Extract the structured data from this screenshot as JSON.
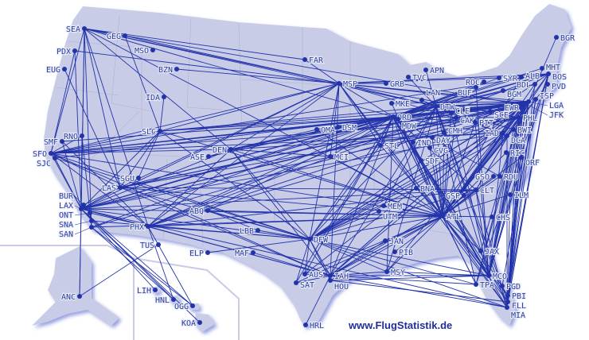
{
  "credit": "www.FlugStatistik.de",
  "colors": {
    "land": "#c8cce6",
    "route": "#2233aa",
    "airport": "#2233aa",
    "border": "#a9aec8"
  },
  "airports": [
    "SEA",
    "GEG",
    "PDX",
    "EUG",
    "MSO",
    "BZN",
    "IDA",
    "SLC",
    "RNO",
    "SMF",
    "SFO",
    "SJC",
    "DEN",
    "ASE",
    "LAS",
    "SGU",
    "LAX",
    "BUR",
    "ONT",
    "SNA",
    "SAN",
    "PHX",
    "TUS",
    "ABQ",
    "ELP",
    "LBB",
    "MAF",
    "ANC",
    "LIH",
    "HNL",
    "OGG",
    "KOA",
    "FAR",
    "MSP",
    "GRB",
    "TVC",
    "APN",
    "MKE",
    "LAN",
    "DTW",
    "ORD",
    "MDW",
    "CLE",
    "CAK",
    "PIT",
    "OMA",
    "DSM",
    "MCI",
    "STL",
    "IND",
    "DAY",
    "CMH",
    "CVG",
    "SDF",
    "BGR",
    "MHT",
    "BOS",
    "ALB",
    "SYR",
    "ROC",
    "BUF",
    "BGM",
    "BDL",
    "PVD",
    "LGA",
    "JFK",
    "EWR",
    "ISP",
    "PHL",
    "SCE",
    "IAD",
    "DCA",
    "BWI",
    "RIC",
    "ORF",
    "GSO",
    "RDU",
    "CLT",
    "GSP",
    "ILM",
    "BNA",
    "MEM",
    "UTM",
    "ATL",
    "CHS",
    "DFW",
    "JAN",
    "PIB",
    "MSY",
    "AUS",
    "IAH",
    "HOU",
    "SAT",
    "HRL",
    "JAX",
    "MCO",
    "TPA",
    "PGD",
    "PBI",
    "FLL",
    "MIA"
  ],
  "routes": [
    [
      "SEA",
      "ORD"
    ],
    [
      "SEA",
      "MSP"
    ],
    [
      "SEA",
      "DTW"
    ],
    [
      "SEA",
      "EWR"
    ],
    [
      "SEA",
      "LAX"
    ],
    [
      "SEA",
      "SFO"
    ],
    [
      "SEA",
      "LAS"
    ],
    [
      "SEA",
      "PHX"
    ],
    [
      "SEA",
      "ANC"
    ],
    [
      "SEA",
      "DEN"
    ],
    [
      "SEA",
      "SAN"
    ],
    [
      "SEA",
      "GEG"
    ],
    [
      "SEA",
      "ATL"
    ],
    [
      "GEG",
      "MSP"
    ],
    [
      "GEG",
      "SLC"
    ],
    [
      "PDX",
      "MSP"
    ],
    [
      "PDX",
      "LAX"
    ],
    [
      "PDX",
      "SFO"
    ],
    [
      "EUG",
      "LAS"
    ],
    [
      "BZN",
      "MSP"
    ],
    [
      "IDA",
      "SLC"
    ],
    [
      "FAR",
      "MSP"
    ],
    [
      "FAR",
      "SEA"
    ],
    [
      "SLC",
      "ORD"
    ],
    [
      "SLC",
      "ATL"
    ],
    [
      "SLC",
      "MSP"
    ],
    [
      "SLC",
      "DFW"
    ],
    [
      "SLC",
      "LAX"
    ],
    [
      "SLC",
      "DTW"
    ],
    [
      "SLC",
      "JFK"
    ],
    [
      "SLC",
      "LAS"
    ],
    [
      "SLC",
      "SFO"
    ],
    [
      "RNO",
      "SFO"
    ],
    [
      "RNO",
      "LAX"
    ],
    [
      "RNO",
      "SAN"
    ],
    [
      "SMF",
      "LAX"
    ],
    [
      "SMF",
      "ORD"
    ],
    [
      "SMF",
      "PHX"
    ],
    [
      "SFO",
      "ORD"
    ],
    [
      "SFO",
      "JFK"
    ],
    [
      "SFO",
      "EWR"
    ],
    [
      "SFO",
      "IAD"
    ],
    [
      "SFO",
      "BOS"
    ],
    [
      "SFO",
      "ATL"
    ],
    [
      "SFO",
      "DFW"
    ],
    [
      "SFO",
      "IAH"
    ],
    [
      "SFO",
      "DEN"
    ],
    [
      "SFO",
      "LAX"
    ],
    [
      "SFO",
      "LAS"
    ],
    [
      "SFO",
      "PHX"
    ],
    [
      "SFO",
      "MSP"
    ],
    [
      "SFO",
      "PHL"
    ],
    [
      "SJC",
      "LAX"
    ],
    [
      "SJC",
      "ORD"
    ],
    [
      "SJC",
      "DFW"
    ],
    [
      "DEN",
      "ORD"
    ],
    [
      "DEN",
      "ATL"
    ],
    [
      "DEN",
      "JFK"
    ],
    [
      "DEN",
      "IAD"
    ],
    [
      "DEN",
      "DFW"
    ],
    [
      "DEN",
      "LAX"
    ],
    [
      "DEN",
      "PHX"
    ],
    [
      "DEN",
      "MSP"
    ],
    [
      "DEN",
      "DTW"
    ],
    [
      "DEN",
      "IAH"
    ],
    [
      "DEN",
      "LGA"
    ],
    [
      "ASE",
      "DEN"
    ],
    [
      "ASE",
      "ORD"
    ],
    [
      "LAS",
      "ORD"
    ],
    [
      "LAS",
      "ATL"
    ],
    [
      "LAS",
      "JFK"
    ],
    [
      "LAS",
      "DFW"
    ],
    [
      "LAS",
      "MSP"
    ],
    [
      "LAS",
      "DTW"
    ],
    [
      "LAS",
      "EWR"
    ],
    [
      "LAS",
      "PHL"
    ],
    [
      "LAS",
      "IAH"
    ],
    [
      "LAS",
      "LAX"
    ],
    [
      "LAS",
      "CLT"
    ],
    [
      "SGU",
      "SLC"
    ],
    [
      "LAX",
      "JFK"
    ],
    [
      "LAX",
      "ORD"
    ],
    [
      "LAX",
      "ATL"
    ],
    [
      "LAX",
      "DFW"
    ],
    [
      "LAX",
      "IAD"
    ],
    [
      "LAX",
      "BOS"
    ],
    [
      "LAX",
      "MIA"
    ],
    [
      "LAX",
      "IAH"
    ],
    [
      "LAX",
      "DTW"
    ],
    [
      "LAX",
      "MSP"
    ],
    [
      "LAX",
      "EWR"
    ],
    [
      "LAX",
      "PHL"
    ],
    [
      "LAX",
      "CLT"
    ],
    [
      "LAX",
      "HNL"
    ],
    [
      "LAX",
      "OGG"
    ],
    [
      "LAX",
      "KOA"
    ],
    [
      "LAX",
      "LIH"
    ],
    [
      "LAX",
      "PHX"
    ],
    [
      "LAX",
      "ANC"
    ],
    [
      "SAN",
      "HNL"
    ],
    [
      "SAN",
      "OGG"
    ],
    [
      "SAN",
      "ORD"
    ],
    [
      "SAN",
      "ATL"
    ],
    [
      "SAN",
      "JFK"
    ],
    [
      "SNA",
      "DFW"
    ],
    [
      "ONT",
      "PHX"
    ],
    [
      "BUR",
      "LAS"
    ],
    [
      "PHX",
      "ORD"
    ],
    [
      "PHX",
      "ATL"
    ],
    [
      "PHX",
      "DFW"
    ],
    [
      "PHX",
      "JFK"
    ],
    [
      "PHX",
      "IAH"
    ],
    [
      "PHX",
      "PHL"
    ],
    [
      "PHX",
      "CLT"
    ],
    [
      "PHX",
      "HNL"
    ],
    [
      "PHX",
      "OGG"
    ],
    [
      "PHX",
      "MSP"
    ],
    [
      "PHX",
      "DTW"
    ],
    [
      "PHX",
      "BOS"
    ],
    [
      "TUS",
      "ANC"
    ],
    [
      "ABQ",
      "DFW"
    ],
    [
      "ABQ",
      "ORD"
    ],
    [
      "ABQ",
      "ATL"
    ],
    [
      "ELP",
      "DFW"
    ],
    [
      "LBB",
      "DFW"
    ],
    [
      "MAF",
      "IAH"
    ],
    [
      "LBB",
      "ABQ"
    ],
    [
      "MSP",
      "ORD"
    ],
    [
      "MSP",
      "ATL"
    ],
    [
      "MSP",
      "JFK"
    ],
    [
      "MSP",
      "LGA"
    ],
    [
      "MSP",
      "BOS"
    ],
    [
      "MSP",
      "DTW"
    ],
    [
      "MSP",
      "DFW"
    ],
    [
      "MSP",
      "MCO"
    ],
    [
      "MSP",
      "PHL"
    ],
    [
      "MSP",
      "IAD"
    ],
    [
      "MSP",
      "MIA"
    ],
    [
      "MSP",
      "MCI"
    ],
    [
      "MSP",
      "STL"
    ],
    [
      "MSP",
      "GRB"
    ],
    [
      "MSP",
      "IAH"
    ],
    [
      "ORD",
      "JFK"
    ],
    [
      "ORD",
      "LGA"
    ],
    [
      "ORD",
      "EWR"
    ],
    [
      "ORD",
      "BOS"
    ],
    [
      "ORD",
      "ATL"
    ],
    [
      "ORD",
      "DFW"
    ],
    [
      "ORD",
      "MIA"
    ],
    [
      "ORD",
      "MCO"
    ],
    [
      "ORD",
      "TPA"
    ],
    [
      "ORD",
      "IAH"
    ],
    [
      "ORD",
      "DCA"
    ],
    [
      "ORD",
      "PHL"
    ],
    [
      "ORD",
      "CLT"
    ],
    [
      "ORD",
      "MSY"
    ],
    [
      "ORD",
      "FLL"
    ],
    [
      "ORD",
      "BDL"
    ],
    [
      "ORD",
      "RDU"
    ],
    [
      "ORD",
      "PIT"
    ],
    [
      "ORD",
      "CLE"
    ],
    [
      "ORD",
      "BUF"
    ],
    [
      "ORD",
      "OMA"
    ],
    [
      "ORD",
      "DSM"
    ],
    [
      "ORD",
      "MCI"
    ],
    [
      "ORD",
      "STL"
    ],
    [
      "ORD",
      "BNA"
    ],
    [
      "ORD",
      "AUS"
    ],
    [
      "ORD",
      "SAT"
    ],
    [
      "ORD",
      "JAX"
    ],
    [
      "ORD",
      "PBI"
    ],
    [
      "ORD",
      "ROC"
    ],
    [
      "ORD",
      "SYR"
    ],
    [
      "ORD",
      "ALB"
    ],
    [
      "MDW",
      "LGA"
    ],
    [
      "MDW",
      "ATL"
    ],
    [
      "MDW",
      "MCO"
    ],
    [
      "MKE",
      "ATL"
    ],
    [
      "MKE",
      "LGA"
    ],
    [
      "TVC",
      "DTW"
    ],
    [
      "APN",
      "DTW"
    ],
    [
      "LAN",
      "DTW"
    ],
    [
      "DTW",
      "JFK"
    ],
    [
      "DTW",
      "LGA"
    ],
    [
      "DTW",
      "BOS"
    ],
    [
      "DTW",
      "ATL"
    ],
    [
      "DTW",
      "MCO"
    ],
    [
      "DTW",
      "TPA"
    ],
    [
      "DTW",
      "MIA"
    ],
    [
      "DTW",
      "FLL"
    ],
    [
      "DTW",
      "DFW"
    ],
    [
      "DTW",
      "PHL"
    ],
    [
      "DTW",
      "DCA"
    ],
    [
      "DTW",
      "MEM"
    ],
    [
      "DTW",
      "IAH"
    ],
    [
      "DTW",
      "MSY"
    ],
    [
      "DTW",
      "BWI"
    ],
    [
      "CLE",
      "ATL"
    ],
    [
      "CLE",
      "LGA"
    ],
    [
      "CLE",
      "MCO"
    ],
    [
      "CAK",
      "ATL"
    ],
    [
      "PIT",
      "ATL"
    ],
    [
      "PIT",
      "MCO"
    ],
    [
      "CMH",
      "ATL"
    ],
    [
      "DAY",
      "ATL"
    ],
    [
      "IND",
      "ATL"
    ],
    [
      "CVG",
      "ATL"
    ],
    [
      "SDF",
      "ATL"
    ],
    [
      "STL",
      "ATL"
    ],
    [
      "MCI",
      "ATL"
    ],
    [
      "OMA",
      "ATL"
    ],
    [
      "DSM",
      "DEN"
    ],
    [
      "OMA",
      "DEN"
    ],
    [
      "MCI",
      "DEN"
    ],
    [
      "STL",
      "DFW"
    ],
    [
      "BGR",
      "LGA"
    ],
    [
      "MHT",
      "ORD"
    ],
    [
      "BOS",
      "ATL"
    ],
    [
      "BOS",
      "MIA"
    ],
    [
      "BOS",
      "MCO"
    ],
    [
      "BOS",
      "FLL"
    ],
    [
      "BOS",
      "DFW"
    ],
    [
      "BOS",
      "PBI"
    ],
    [
      "BOS",
      "DCA"
    ],
    [
      "PVD",
      "ATL"
    ],
    [
      "ALB",
      "ATL"
    ],
    [
      "SYR",
      "MSP"
    ],
    [
      "ROC",
      "DTW"
    ],
    [
      "BUF",
      "MCO"
    ],
    [
      "BGM",
      "DTW"
    ],
    [
      "BDL",
      "ATL"
    ],
    [
      "JFK",
      "ATL"
    ],
    [
      "JFK",
      "MIA"
    ],
    [
      "JFK",
      "MCO"
    ],
    [
      "JFK",
      "FLL"
    ],
    [
      "JFK",
      "TPA"
    ],
    [
      "JFK",
      "PBI"
    ],
    [
      "JFK",
      "DFW"
    ],
    [
      "JFK",
      "IAH"
    ],
    [
      "JFK",
      "MSY"
    ],
    [
      "JFK",
      "AUS"
    ],
    [
      "LGA",
      "ATL"
    ],
    [
      "LGA",
      "MIA"
    ],
    [
      "LGA",
      "DFW"
    ],
    [
      "LGA",
      "FLL"
    ],
    [
      "LGA",
      "MCO"
    ],
    [
      "LGA",
      "RDU"
    ],
    [
      "LGA",
      "CLT"
    ],
    [
      "EWR",
      "ATL"
    ],
    [
      "EWR",
      "IAH"
    ],
    [
      "EWR",
      "MCO"
    ],
    [
      "EWR",
      "MIA"
    ],
    [
      "EWR",
      "DFW"
    ],
    [
      "EWR",
      "PBI"
    ],
    [
      "ISP",
      "BWI"
    ],
    [
      "PHL",
      "ATL"
    ],
    [
      "PHL",
      "MCO"
    ],
    [
      "PHL",
      "MIA"
    ],
    [
      "PHL",
      "DFW"
    ],
    [
      "PHL",
      "TPA"
    ],
    [
      "PHL",
      "CLT"
    ],
    [
      "SCE",
      "DTW"
    ],
    [
      "IAD",
      "ATL"
    ],
    [
      "IAD",
      "DFW"
    ],
    [
      "IAD",
      "IAH"
    ],
    [
      "IAD",
      "MCO"
    ],
    [
      "DCA",
      "ATL"
    ],
    [
      "DCA",
      "MIA"
    ],
    [
      "DCA",
      "DFW"
    ],
    [
      "BWI",
      "ATL"
    ],
    [
      "BWI",
      "MCO"
    ],
    [
      "RIC",
      "ATL"
    ],
    [
      "ORF",
      "ATL"
    ],
    [
      "ORF",
      "MCO"
    ],
    [
      "GSO",
      "ATL"
    ],
    [
      "RDU",
      "ATL"
    ],
    [
      "CLT",
      "ATL"
    ],
    [
      "CLT",
      "DFW"
    ],
    [
      "CLT",
      "MIA"
    ],
    [
      "CLT",
      "MCO"
    ],
    [
      "GSP",
      "ATL"
    ],
    [
      "ILM",
      "ATL"
    ],
    [
      "ILM",
      "MIA"
    ],
    [
      "CHS",
      "ATL"
    ],
    [
      "BNA",
      "ATL"
    ],
    [
      "BNA",
      "DFW"
    ],
    [
      "MEM",
      "ATL"
    ],
    [
      "MEM",
      "DFW"
    ],
    [
      "UTM",
      "DFW"
    ],
    [
      "ATL",
      "DFW"
    ],
    [
      "ATL",
      "IAH"
    ],
    [
      "ATL",
      "MCO"
    ],
    [
      "ATL",
      "TPA"
    ],
    [
      "ATL",
      "MIA"
    ],
    [
      "ATL",
      "FLL"
    ],
    [
      "ATL",
      "MSY"
    ],
    [
      "ATL",
      "JAX"
    ],
    [
      "ATL",
      "AUS"
    ],
    [
      "ATL",
      "PBI"
    ],
    [
      "ATL",
      "SAT"
    ],
    [
      "ATL",
      "JAN"
    ],
    [
      "ATL",
      "PIB"
    ],
    [
      "ATL",
      "HOU"
    ],
    [
      "DFW",
      "IAH"
    ],
    [
      "DFW",
      "MIA"
    ],
    [
      "DFW",
      "MCO"
    ],
    [
      "DFW",
      "MSY"
    ],
    [
      "DFW",
      "AUS"
    ],
    [
      "DFW",
      "SAT"
    ],
    [
      "DFW",
      "TPA"
    ],
    [
      "DFW",
      "HOU"
    ],
    [
      "IAH",
      "MIA"
    ],
    [
      "IAH",
      "MCO"
    ],
    [
      "IAH",
      "TPA"
    ],
    [
      "IAH",
      "MSY"
    ],
    [
      "IAH",
      "ATL"
    ],
    [
      "IAH",
      "CLT"
    ],
    [
      "IAH",
      "JAN"
    ],
    [
      "HOU",
      "MCO"
    ],
    [
      "HOU",
      "FLL"
    ],
    [
      "HRL",
      "IAH"
    ],
    [
      "SAT",
      "IAH"
    ],
    [
      "AUS",
      "IAH"
    ],
    [
      "JAX",
      "EWR"
    ],
    [
      "MCO",
      "BOS"
    ],
    [
      "TPA",
      "BOS"
    ],
    [
      "PGD",
      "ISP"
    ],
    [
      "PBI",
      "LGA"
    ],
    [
      "FLL",
      "EWR"
    ],
    [
      "MIA",
      "ISP"
    ],
    [
      "MIA",
      "BDL"
    ],
    [
      "PBI",
      "PHL"
    ],
    [
      "MSY",
      "MCO"
    ]
  ]
}
